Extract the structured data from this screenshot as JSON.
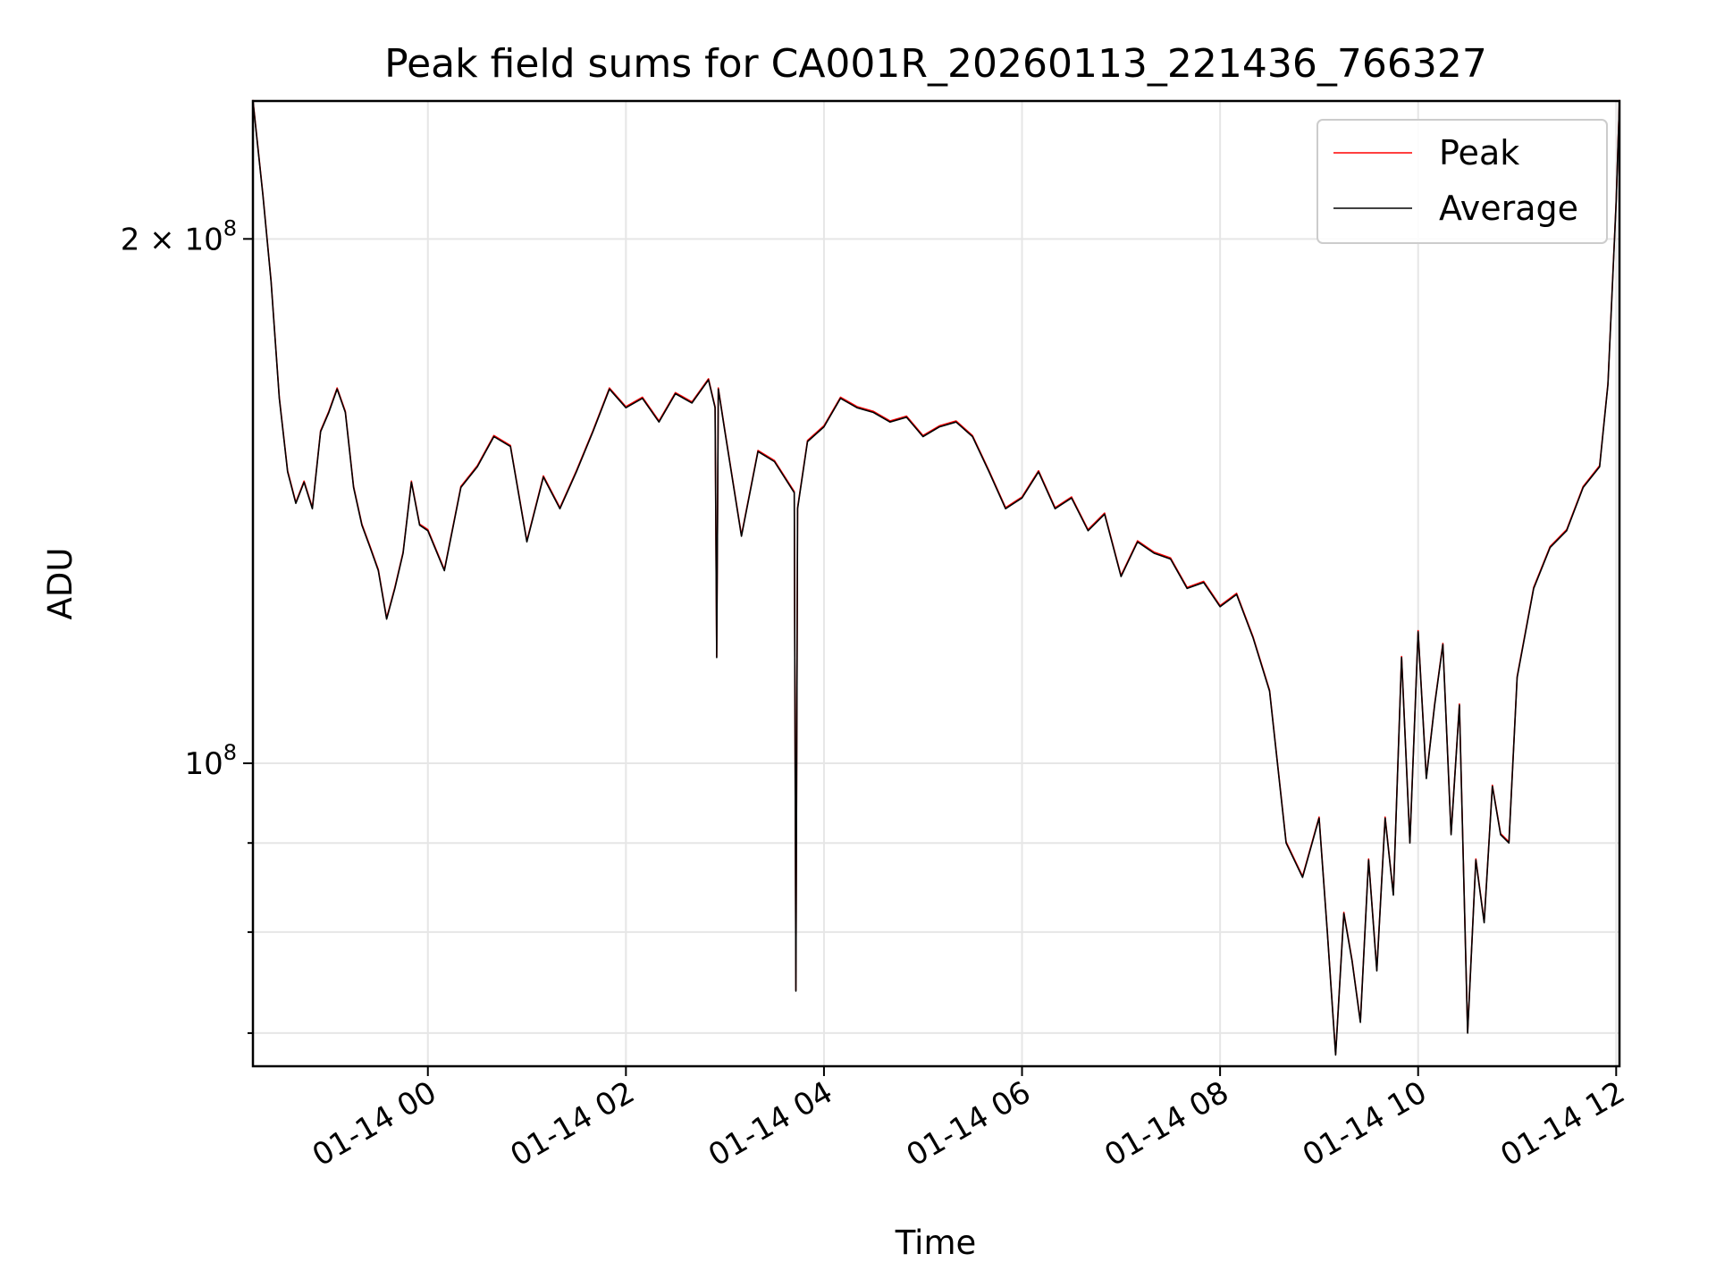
{
  "chart_data": {
    "type": "line",
    "title": "Peak field sums for CA001R_20260113_221436_766327",
    "xlabel": "Time",
    "ylabel": "ADU",
    "y_scale": "log",
    "ylim": [
      67000000,
      240000000
    ],
    "xlim": [
      "2026-01-13 22:14",
      "2026-01-14 12:02"
    ],
    "grid": true,
    "legend_position": "top-right",
    "x_ticks": [
      {
        "at": "2026-01-14 00:00",
        "label": "01-14 00"
      },
      {
        "at": "2026-01-14 02:00",
        "label": "01-14 02"
      },
      {
        "at": "2026-01-14 04:00",
        "label": "01-14 04"
      },
      {
        "at": "2026-01-14 06:00",
        "label": "01-14 06"
      },
      {
        "at": "2026-01-14 08:00",
        "label": "01-14 08"
      },
      {
        "at": "2026-01-14 10:00",
        "label": "01-14 10"
      },
      {
        "at": "2026-01-14 12:00",
        "label": "01-14 12"
      }
    ],
    "y_ticks": [
      {
        "value": 200000000,
        "mantissa": "2",
        "times": "×",
        "base": "10",
        "exponent": "8"
      },
      {
        "value": 100000000,
        "mantissa": "",
        "times": "",
        "base": "10",
        "exponent": "8"
      }
    ],
    "y_minor_ticks": [
      70000000,
      80000000,
      90000000
    ],
    "colors": {
      "Peak": "#ff0000",
      "Average": "#000000"
    },
    "series": [
      {
        "name": "Peak"
      },
      {
        "name": "Average"
      }
    ],
    "x": [
      "2026-01-13 22:14",
      "2026-01-13 22:20",
      "2026-01-13 22:25",
      "2026-01-13 22:30",
      "2026-01-13 22:35",
      "2026-01-13 22:40",
      "2026-01-13 22:45",
      "2026-01-13 22:50",
      "2026-01-13 22:55",
      "2026-01-13 23:00",
      "2026-01-13 23:05",
      "2026-01-13 23:10",
      "2026-01-13 23:15",
      "2026-01-13 23:20",
      "2026-01-13 23:25",
      "2026-01-13 23:30",
      "2026-01-13 23:35",
      "2026-01-13 23:40",
      "2026-01-13 23:45",
      "2026-01-13 23:50",
      "2026-01-13 23:55",
      "2026-01-14 00:00",
      "2026-01-14 00:10",
      "2026-01-14 00:20",
      "2026-01-14 00:30",
      "2026-01-14 00:40",
      "2026-01-14 00:50",
      "2026-01-14 01:00",
      "2026-01-14 01:10",
      "2026-01-14 01:20",
      "2026-01-14 01:30",
      "2026-01-14 01:40",
      "2026-01-14 01:50",
      "2026-01-14 02:00",
      "2026-01-14 02:10",
      "2026-01-14 02:20",
      "2026-01-14 02:30",
      "2026-01-14 02:40",
      "2026-01-14 02:50",
      "2026-01-14 02:54",
      "2026-01-14 02:55",
      "2026-01-14 02:56",
      "2026-01-14 03:00",
      "2026-01-14 03:10",
      "2026-01-14 03:20",
      "2026-01-14 03:30",
      "2026-01-14 03:42",
      "2026-01-14 03:43",
      "2026-01-14 03:44",
      "2026-01-14 03:50",
      "2026-01-14 04:00",
      "2026-01-14 04:10",
      "2026-01-14 04:20",
      "2026-01-14 04:30",
      "2026-01-14 04:40",
      "2026-01-14 04:50",
      "2026-01-14 05:00",
      "2026-01-14 05:10",
      "2026-01-14 05:20",
      "2026-01-14 05:30",
      "2026-01-14 05:40",
      "2026-01-14 05:50",
      "2026-01-14 06:00",
      "2026-01-14 06:10",
      "2026-01-14 06:20",
      "2026-01-14 06:30",
      "2026-01-14 06:40",
      "2026-01-14 06:50",
      "2026-01-14 07:00",
      "2026-01-14 07:10",
      "2026-01-14 07:20",
      "2026-01-14 07:30",
      "2026-01-14 07:40",
      "2026-01-14 07:50",
      "2026-01-14 08:00",
      "2026-01-14 08:10",
      "2026-01-14 08:20",
      "2026-01-14 08:30",
      "2026-01-14 08:40",
      "2026-01-14 08:50",
      "2026-01-14 09:00",
      "2026-01-14 09:05",
      "2026-01-14 09:10",
      "2026-01-14 09:15",
      "2026-01-14 09:20",
      "2026-01-14 09:25",
      "2026-01-14 09:30",
      "2026-01-14 09:35",
      "2026-01-14 09:40",
      "2026-01-14 09:45",
      "2026-01-14 09:50",
      "2026-01-14 09:55",
      "2026-01-14 10:00",
      "2026-01-14 10:05",
      "2026-01-14 10:10",
      "2026-01-14 10:15",
      "2026-01-14 10:20",
      "2026-01-14 10:25",
      "2026-01-14 10:30",
      "2026-01-14 10:35",
      "2026-01-14 10:40",
      "2026-01-14 10:45",
      "2026-01-14 10:50",
      "2026-01-14 10:55",
      "2026-01-14 11:00",
      "2026-01-14 11:10",
      "2026-01-14 11:20",
      "2026-01-14 11:30",
      "2026-01-14 11:40",
      "2026-01-14 11:50",
      "2026-01-14 11:55",
      "2026-01-14 12:00",
      "2026-01-14 12:02"
    ],
    "values": [
      240000000,
      212000000,
      189000000,
      162000000,
      147000000,
      141000000,
      145000000,
      140000000,
      155000000,
      159000000,
      164000000,
      159000000,
      144000000,
      137000000,
      133000000,
      129000000,
      121000000,
      126000000,
      132000000,
      145000000,
      137000000,
      136000000,
      129000000,
      144000000,
      148000000,
      154000000,
      152000000,
      134000000,
      146000000,
      140000000,
      147000000,
      155000000,
      164000000,
      160000000,
      162000000,
      157000000,
      163000000,
      161000000,
      166000000,
      160000000,
      115000000,
      164000000,
      155000000,
      135000000,
      151000000,
      149000000,
      143000000,
      74000000,
      140000000,
      153000000,
      156000000,
      162000000,
      160000000,
      159000000,
      157000000,
      158000000,
      154000000,
      156000000,
      157000000,
      154000000,
      147000000,
      140000000,
      142000000,
      147000000,
      140000000,
      142000000,
      136000000,
      139000000,
      128000000,
      134000000,
      132000000,
      131000000,
      126000000,
      127000000,
      123000000,
      125000000,
      118000000,
      110000000,
      90000000,
      86000000,
      93000000,
      80000000,
      68000000,
      82000000,
      77000000,
      71000000,
      88000000,
      76000000,
      93000000,
      84000000,
      115000000,
      90000000,
      119000000,
      98000000,
      108000000,
      117000000,
      91000000,
      108000000,
      70000000,
      88000000,
      81000000,
      97000000,
      91000000,
      90000000,
      112000000,
      126000000,
      133000000,
      136000000,
      144000000,
      148000000,
      165000000,
      210000000,
      240000000
    ]
  },
  "legend": {
    "entries": [
      {
        "label": "Peak"
      },
      {
        "label": "Average"
      }
    ]
  }
}
